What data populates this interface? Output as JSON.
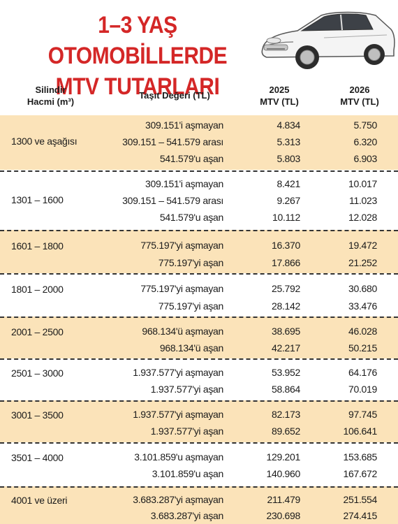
{
  "title_line1": "1–3 YAŞ OTOMOBİLLERDE",
  "title_line2": "MTV TUTARLARI",
  "header": {
    "cylinder_l1": "Silindir",
    "cylinder_l2": "Hacmi (m³)",
    "value": "Taşıt Değeri (TL)",
    "y2025_l1": "2025",
    "y2025_l2": "MTV (TL)",
    "y2026_l1": "2026",
    "y2026_l2": "MTV (TL)"
  },
  "groups": [
    {
      "cylinder": "1300 ve aşağısı",
      "rows": [
        {
          "value": "309.151'i aşmayan",
          "y2025": "4.834",
          "y2026": "5.750"
        },
        {
          "value": "309.151 – 541.579 arası",
          "y2025": "5.313",
          "y2026": "6.320"
        },
        {
          "value": "541.579'u aşan",
          "y2025": "5.803",
          "y2026": "6.903"
        }
      ]
    },
    {
      "cylinder": "1301 – 1600",
      "rows": [
        {
          "value": "309.151'i aşmayan",
          "y2025": "8.421",
          "y2026": "10.017"
        },
        {
          "value": "309.151 – 541.579 arası",
          "y2025": "9.267",
          "y2026": "11.023"
        },
        {
          "value": "541.579'u aşan",
          "y2025": "10.112",
          "y2026": "12.028"
        }
      ]
    },
    {
      "cylinder": "1601 – 1800",
      "rows": [
        {
          "value": "775.197'yi aşmayan",
          "y2025": "16.370",
          "y2026": "19.472"
        },
        {
          "value": "775.197'yi aşan",
          "y2025": "17.866",
          "y2026": "21.252"
        }
      ]
    },
    {
      "cylinder": "1801 – 2000",
      "rows": [
        {
          "value": "775.197'yi aşmayan",
          "y2025": "25.792",
          "y2026": "30.680"
        },
        {
          "value": "775.197'yi aşan",
          "y2025": "28.142",
          "y2026": "33.476"
        }
      ]
    },
    {
      "cylinder": "2001 – 2500",
      "rows": [
        {
          "value": "968.134'ü aşmayan",
          "y2025": "38.695",
          "y2026": "46.028"
        },
        {
          "value": "968.134'ü aşan",
          "y2025": "42.217",
          "y2026": "50.215"
        }
      ]
    },
    {
      "cylinder": "2501 – 3000",
      "rows": [
        {
          "value": "1.937.577'yi aşmayan",
          "y2025": "53.952",
          "y2026": "64.176"
        },
        {
          "value": "1.937.577'yi aşan",
          "y2025": "58.864",
          "y2026": "70.019"
        }
      ]
    },
    {
      "cylinder": "3001 – 3500",
      "rows": [
        {
          "value": "1.937.577'yi aşmayan",
          "y2025": "82.173",
          "y2026": "97.745"
        },
        {
          "value": "1.937.577'yi aşan",
          "y2025": "89.652",
          "y2026": "106.641"
        }
      ]
    },
    {
      "cylinder": "3501 – 4000",
      "rows": [
        {
          "value": "3.101.859'u aşmayan",
          "y2025": "129.201",
          "y2026": "153.685"
        },
        {
          "value": "3.101.859'u aşan",
          "y2025": "140.960",
          "y2026": "167.672"
        }
      ]
    },
    {
      "cylinder": "4001 ve üzeri",
      "rows": [
        {
          "value": "3.683.287'yi aşmayan",
          "y2025": "211.479",
          "y2026": "251.554"
        },
        {
          "value": "3.683.287'yi aşan",
          "y2025": "230.698",
          "y2026": "274.415"
        }
      ]
    }
  ],
  "colors": {
    "title": "#d42727",
    "shade": "#fbe3b9"
  },
  "icons": {
    "car": "car-illustration"
  }
}
